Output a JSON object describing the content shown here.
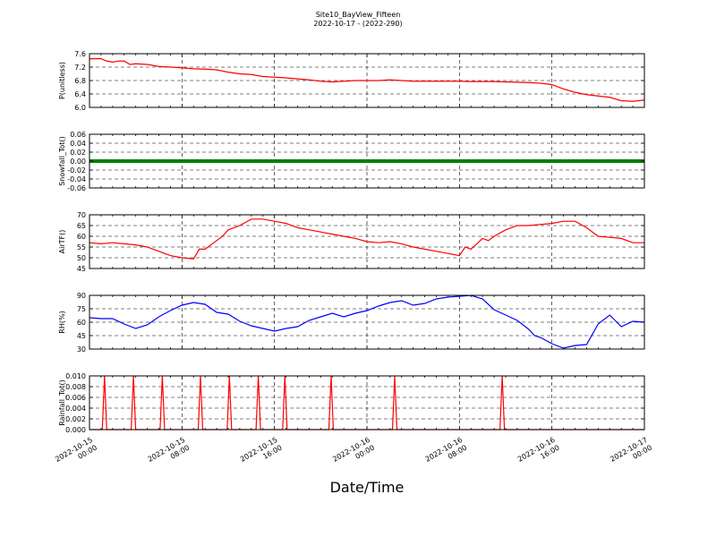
{
  "figure": {
    "title": "Site10_BayView_Fifteen",
    "subtitle": "2022-10-17 - (2022-290)",
    "xlabel": "Date/Time"
  },
  "chart_data": {
    "type": "line",
    "title": "Site10_BayView_Fifteen",
    "subtitle": "2022-10-17 - (2022-290)",
    "xlabel": "Date/Time",
    "x_range": [
      "2022-10-15 00:00",
      "2022-10-17 00:00"
    ],
    "x_ticks": [
      {
        "line1": "2022-10-15",
        "line2": "00:00",
        "hour": 0
      },
      {
        "line1": "2022-10-15",
        "line2": "08:00",
        "hour": 8
      },
      {
        "line1": "2022-10-15",
        "line2": "16:00",
        "hour": 16
      },
      {
        "line1": "2022-10-16",
        "line2": "00:00",
        "hour": 24
      },
      {
        "line1": "2022-10-16",
        "line2": "08:00",
        "hour": 32
      },
      {
        "line1": "2022-10-16",
        "line2": "16:00",
        "hour": 40
      },
      {
        "line1": "2022-10-17",
        "line2": "00:00",
        "hour": 48
      }
    ],
    "grid": true,
    "panels": [
      {
        "ylabel": "P(unitless)",
        "color": "#ff0000",
        "ylim": [
          6.0,
          7.6
        ],
        "yticks": [
          "6.0",
          "6.4",
          "6.8",
          "7.2",
          "7.6"
        ],
        "series_x_hours": [
          0,
          1,
          1.5,
          2,
          2.5,
          3,
          3.5,
          4,
          5,
          6,
          7,
          8,
          9,
          10,
          11,
          12,
          13,
          14,
          15,
          16,
          17,
          18,
          19,
          20,
          21,
          22,
          23,
          24,
          25,
          26,
          27,
          28,
          29,
          30,
          31,
          32,
          33,
          34,
          35,
          36,
          37,
          38,
          39,
          40,
          41,
          42,
          43,
          44,
          45,
          46,
          47,
          48
        ],
        "series_y": [
          7.45,
          7.45,
          7.38,
          7.35,
          7.38,
          7.38,
          7.28,
          7.3,
          7.28,
          7.22,
          7.2,
          7.18,
          7.15,
          7.14,
          7.12,
          7.05,
          7.0,
          6.98,
          6.92,
          6.9,
          6.88,
          6.85,
          6.82,
          6.78,
          6.76,
          6.78,
          6.8,
          6.8,
          6.8,
          6.82,
          6.8,
          6.78,
          6.78,
          6.78,
          6.78,
          6.78,
          6.77,
          6.77,
          6.77,
          6.76,
          6.75,
          6.74,
          6.72,
          6.68,
          6.55,
          6.45,
          6.38,
          6.34,
          6.3,
          6.2,
          6.18,
          6.22
        ]
      },
      {
        "ylabel": "Snowfall_Tot()",
        "color": "#008000",
        "ylim": [
          -0.06,
          0.06
        ],
        "yticks": [
          "-0.06",
          "-0.04",
          "-0.02",
          "0.00",
          "0.02",
          "0.04",
          "0.06"
        ],
        "series_x_hours": [
          0,
          48
        ],
        "series_y": [
          0.0,
          0.0
        ]
      },
      {
        "ylabel": "AirTF()",
        "color": "#ff0000",
        "ylim": [
          45,
          70
        ],
        "yticks": [
          "45",
          "50",
          "55",
          "60",
          "65",
          "70"
        ],
        "series_x_hours": [
          0,
          1,
          2,
          3,
          4,
          5,
          6,
          7,
          8,
          9,
          9.5,
          10,
          11,
          11.5,
          12,
          13,
          14,
          15,
          16,
          17,
          18,
          19,
          20,
          21,
          22,
          23,
          24,
          25,
          26,
          27,
          28,
          29,
          30,
          31,
          32,
          32.5,
          33,
          34,
          34.5,
          35,
          36,
          37,
          38,
          39,
          40,
          41,
          42,
          43,
          44,
          45,
          46,
          47,
          48
        ],
        "series_y": [
          57,
          56.5,
          57,
          56.5,
          56,
          55,
          53,
          51,
          50,
          49.5,
          54,
          54,
          58,
          60,
          63,
          65,
          68,
          68,
          67,
          66,
          64,
          63,
          62,
          61,
          60,
          59,
          57.5,
          57,
          57.5,
          56.5,
          55,
          54,
          53,
          52,
          51,
          55,
          54,
          59,
          58,
          60,
          63,
          65,
          65,
          65.5,
          66,
          67,
          67,
          64,
          60,
          59.5,
          59,
          57,
          57
        ]
      },
      {
        "ylabel": "RH(%)",
        "color": "#0000ff",
        "ylim": [
          30,
          90
        ],
        "yticks": [
          "30",
          "45",
          "60",
          "75",
          "90"
        ],
        "series_x_hours": [
          0,
          1,
          2,
          3,
          4,
          5,
          6,
          7,
          8,
          9,
          10,
          11,
          12,
          13,
          14,
          15,
          16,
          17,
          18,
          19,
          20,
          21,
          22,
          23,
          24,
          25,
          26,
          27,
          28,
          29,
          30,
          31,
          32,
          33,
          34,
          35,
          36,
          37,
          38,
          38.5,
          39,
          40,
          41,
          42,
          43,
          44,
          45,
          46,
          47,
          48
        ],
        "series_y": [
          65,
          64,
          64,
          58,
          53,
          57,
          66,
          73,
          79,
          82,
          80,
          71,
          69,
          61,
          56,
          53,
          50,
          53,
          55,
          62,
          66,
          70,
          66,
          70,
          73,
          78,
          82,
          84,
          79,
          81,
          86,
          88,
          89,
          90,
          86,
          74,
          68,
          62,
          52,
          45,
          43,
          36,
          31,
          34,
          35,
          58,
          68,
          55,
          61,
          60
        ]
      },
      {
        "ylabel": "Rainfall_Tot()",
        "color": "#ff0000",
        "ylim": [
          0.0,
          0.01
        ],
        "yticks": [
          "0.000",
          "0.002",
          "0.004",
          "0.006",
          "0.008",
          "0.010"
        ],
        "spike_hours": [
          1.3,
          3.8,
          6.3,
          9.6,
          12.1,
          14.6,
          16.9,
          20.9,
          26.4,
          35.7
        ],
        "spike_value": 0.01
      }
    ]
  }
}
